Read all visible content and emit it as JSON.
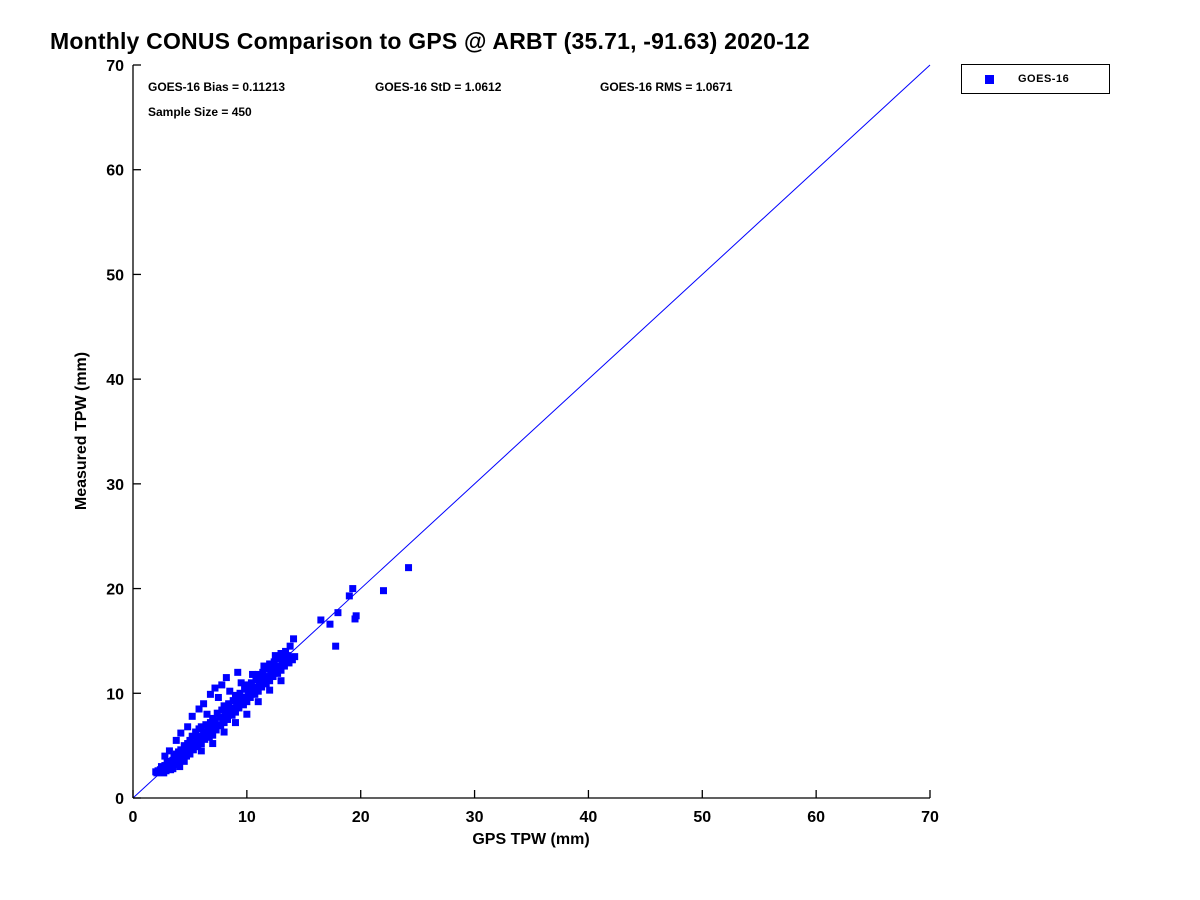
{
  "title": "Monthly CONUS Comparison to GPS @ ARBT (35.71, -91.63) 2020-12",
  "stats": {
    "bias": "GOES-16 Bias = 0.11213",
    "std": "GOES-16 StD = 1.0612",
    "rms": "GOES-16 RMS = 1.0671",
    "sample_size": "Sample Size = 450"
  },
  "legend": {
    "label": "GOES-16",
    "marker_color": "#0000ff"
  },
  "chart_data": {
    "type": "scatter",
    "title": "Monthly CONUS Comparison to GPS @ ARBT (35.71, -91.63) 2020-12",
    "xlabel": "GPS TPW (mm)",
    "ylabel": "Measured TPW (mm)",
    "xlim": [
      0,
      70
    ],
    "ylim": [
      0,
      70
    ],
    "xticks": [
      0,
      10,
      20,
      30,
      40,
      50,
      60,
      70
    ],
    "yticks": [
      0,
      10,
      20,
      30,
      40,
      50,
      60,
      70
    ],
    "grid": false,
    "legend_position": "top-right-outside",
    "axis_color": "#000000",
    "stats_values": {
      "bias": 0.11213,
      "std": 1.0612,
      "rms": 1.0671,
      "sample_size": 450
    },
    "reference_line": {
      "from": [
        0,
        0
      ],
      "to": [
        70,
        70
      ],
      "color": "#0000ff"
    },
    "series": [
      {
        "name": "GOES-16",
        "marker": "square",
        "color": "#0000ff",
        "points": [
          [
            2.0,
            2.5
          ],
          [
            2.1,
            2.4
          ],
          [
            2.2,
            2.6
          ],
          [
            2.3,
            2.5
          ],
          [
            2.4,
            2.7
          ],
          [
            2.5,
            2.5
          ],
          [
            2.5,
            3.0
          ],
          [
            2.6,
            2.8
          ],
          [
            2.7,
            2.4
          ],
          [
            2.8,
            3.1
          ],
          [
            2.8,
            4.0
          ],
          [
            2.9,
            2.6
          ],
          [
            3.0,
            2.8
          ],
          [
            3.0,
            3.4
          ],
          [
            3.1,
            2.9
          ],
          [
            3.2,
            3.5
          ],
          [
            3.2,
            4.5
          ],
          [
            3.3,
            2.7
          ],
          [
            3.4,
            3.0
          ],
          [
            3.5,
            3.6
          ],
          [
            3.5,
            2.8
          ],
          [
            3.6,
            4.0
          ],
          [
            3.7,
            3.2
          ],
          [
            3.8,
            4.2
          ],
          [
            3.8,
            5.5
          ],
          [
            3.9,
            3.5
          ],
          [
            4.0,
            3.6
          ],
          [
            4.0,
            4.4
          ],
          [
            4.1,
            3.0
          ],
          [
            4.2,
            4.6
          ],
          [
            4.2,
            6.2
          ],
          [
            4.3,
            3.8
          ],
          [
            4.4,
            4.2
          ],
          [
            4.5,
            5.0
          ],
          [
            4.5,
            3.5
          ],
          [
            4.6,
            4.8
          ],
          [
            4.7,
            4.0
          ],
          [
            4.8,
            5.2
          ],
          [
            4.8,
            6.8
          ],
          [
            4.9,
            4.5
          ],
          [
            5.0,
            4.2
          ],
          [
            5.0,
            5.5
          ],
          [
            5.1,
            4.8
          ],
          [
            5.2,
            5.9
          ],
          [
            5.2,
            7.8
          ],
          [
            5.3,
            4.6
          ],
          [
            5.4,
            5.2
          ],
          [
            5.5,
            6.3
          ],
          [
            5.5,
            4.9
          ],
          [
            5.6,
            5.8
          ],
          [
            5.7,
            5.0
          ],
          [
            5.8,
            6.6
          ],
          [
            5.8,
            8.5
          ],
          [
            5.9,
            5.5
          ],
          [
            6.0,
            5.2
          ],
          [
            6.0,
            6.8
          ],
          [
            6.0,
            4.5
          ],
          [
            6.1,
            5.9
          ],
          [
            6.2,
            6.3
          ],
          [
            6.2,
            9.0
          ],
          [
            6.3,
            5.6
          ],
          [
            6.4,
            7.0
          ],
          [
            6.5,
            6.1
          ],
          [
            6.5,
            8.0
          ],
          [
            6.6,
            6.6
          ],
          [
            6.7,
            5.8
          ],
          [
            6.8,
            7.2
          ],
          [
            6.8,
            9.9
          ],
          [
            6.9,
            6.4
          ],
          [
            7.0,
            6.0
          ],
          [
            7.0,
            7.6
          ],
          [
            7.0,
            5.2
          ],
          [
            7.1,
            6.8
          ],
          [
            7.2,
            7.3
          ],
          [
            7.2,
            10.5
          ],
          [
            7.3,
            6.5
          ],
          [
            7.4,
            8.1
          ],
          [
            7.5,
            7.0
          ],
          [
            7.5,
            9.6
          ],
          [
            7.6,
            7.7
          ],
          [
            7.7,
            6.9
          ],
          [
            7.8,
            8.4
          ],
          [
            7.8,
            10.8
          ],
          [
            7.9,
            7.4
          ],
          [
            8.0,
            7.2
          ],
          [
            8.0,
            8.8
          ],
          [
            8.0,
            6.3
          ],
          [
            8.1,
            7.8
          ],
          [
            8.2,
            8.3
          ],
          [
            8.2,
            11.5
          ],
          [
            8.3,
            7.5
          ],
          [
            8.4,
            9.0
          ],
          [
            8.5,
            8.0
          ],
          [
            8.5,
            10.2
          ],
          [
            8.6,
            8.6
          ],
          [
            8.7,
            7.9
          ],
          [
            8.8,
            9.3
          ],
          [
            8.9,
            8.4
          ],
          [
            9.0,
            8.2
          ],
          [
            9.0,
            9.8
          ],
          [
            9.0,
            7.2
          ],
          [
            9.1,
            8.8
          ],
          [
            9.2,
            9.4
          ],
          [
            9.2,
            12.0
          ],
          [
            9.3,
            8.6
          ],
          [
            9.4,
            10.0
          ],
          [
            9.5,
            9.0
          ],
          [
            9.5,
            11.0
          ],
          [
            9.6,
            9.6
          ],
          [
            9.7,
            8.9
          ],
          [
            9.8,
            10.4
          ],
          [
            9.9,
            9.4
          ],
          [
            10.0,
            9.2
          ],
          [
            10.0,
            10.8
          ],
          [
            10.0,
            8.0
          ],
          [
            10.1,
            9.8
          ],
          [
            10.2,
            10.4
          ],
          [
            10.3,
            9.6
          ],
          [
            10.4,
            11.0
          ],
          [
            10.5,
            10.0
          ],
          [
            10.5,
            11.8
          ],
          [
            10.6,
            10.6
          ],
          [
            10.7,
            9.9
          ],
          [
            10.8,
            11.3
          ],
          [
            10.9,
            10.4
          ],
          [
            11.0,
            10.2
          ],
          [
            11.0,
            11.8
          ],
          [
            11.0,
            9.2
          ],
          [
            11.1,
            10.8
          ],
          [
            11.2,
            11.4
          ],
          [
            11.3,
            10.6
          ],
          [
            11.4,
            12.0
          ],
          [
            11.5,
            11.0
          ],
          [
            11.5,
            12.6
          ],
          [
            11.6,
            11.6
          ],
          [
            11.7,
            10.9
          ],
          [
            11.8,
            12.3
          ],
          [
            11.9,
            11.4
          ],
          [
            12.0,
            11.2
          ],
          [
            12.0,
            12.8
          ],
          [
            12.0,
            10.3
          ],
          [
            12.1,
            11.8
          ],
          [
            12.2,
            12.4
          ],
          [
            12.3,
            11.6
          ],
          [
            12.4,
            13.0
          ],
          [
            12.5,
            12.0
          ],
          [
            12.5,
            13.6
          ],
          [
            12.6,
            12.6
          ],
          [
            12.7,
            11.9
          ],
          [
            12.8,
            13.3
          ],
          [
            12.9,
            12.4
          ],
          [
            13.0,
            12.2
          ],
          [
            13.0,
            13.8
          ],
          [
            13.0,
            11.2
          ],
          [
            13.1,
            12.8
          ],
          [
            13.2,
            13.4
          ],
          [
            13.3,
            12.6
          ],
          [
            13.4,
            14.0
          ],
          [
            13.5,
            13.0
          ],
          [
            13.6,
            13.6
          ],
          [
            13.7,
            12.9
          ],
          [
            13.8,
            14.5
          ],
          [
            13.9,
            13.4
          ],
          [
            14.0,
            13.2
          ],
          [
            14.1,
            15.2
          ],
          [
            14.2,
            13.5
          ],
          [
            16.5,
            17.0
          ],
          [
            17.3,
            16.6
          ],
          [
            17.8,
            14.5
          ],
          [
            18.0,
            17.7
          ],
          [
            19.0,
            19.3
          ],
          [
            19.3,
            20.0
          ],
          [
            19.5,
            17.1
          ],
          [
            19.6,
            17.4
          ],
          [
            22.0,
            19.8
          ],
          [
            24.2,
            22.0
          ]
        ]
      }
    ]
  }
}
